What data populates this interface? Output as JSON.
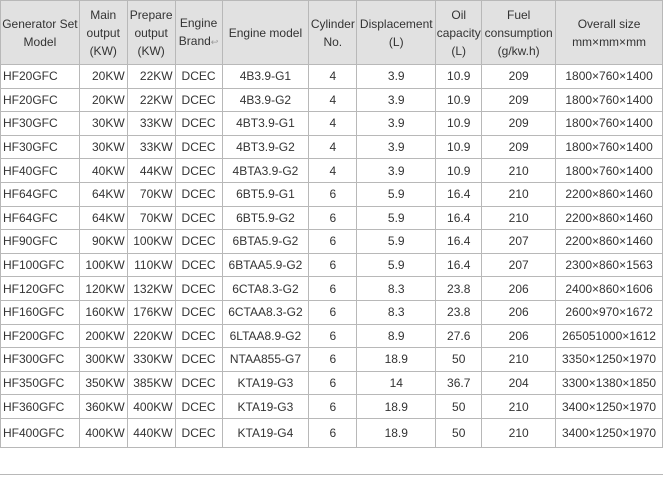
{
  "headers": [
    [
      "Generator Set",
      "Model"
    ],
    [
      "Main",
      "output",
      "(KW)"
    ],
    [
      "Prepare",
      "output",
      "(KW)"
    ],
    [
      "Engine",
      "Brand"
    ],
    [
      "Engine model"
    ],
    [
      "Cylinder",
      "No."
    ],
    [
      "Displacement",
      "(L)"
    ],
    [
      "Oil",
      "capacity",
      "(L)"
    ],
    [
      "Fuel",
      "consumption",
      "(g/kw.h)"
    ],
    [
      "Overall size",
      "mm×mm×mm"
    ]
  ],
  "brand_mark": "↩",
  "rows": [
    [
      "HF20GFC",
      "20KW",
      "22KW",
      "DCEC",
      "4B3.9-G1",
      "4",
      "3.9",
      "10.9",
      "209",
      "1800×760×1400"
    ],
    [
      "HF20GFC",
      "20KW",
      "22KW",
      "DCEC",
      "4B3.9-G2",
      "4",
      "3.9",
      "10.9",
      "209",
      "1800×760×1400"
    ],
    [
      "HF30GFC",
      "30KW",
      "33KW",
      "DCEC",
      "4BT3.9-G1",
      "4",
      "3.9",
      "10.9",
      "209",
      "1800×760×1400"
    ],
    [
      "HF30GFC",
      "30KW",
      "33KW",
      "DCEC",
      "4BT3.9-G2",
      "4",
      "3.9",
      "10.9",
      "209",
      "1800×760×1400"
    ],
    [
      "HF40GFC",
      "40KW",
      "44KW",
      "DCEC",
      "4BTA3.9-G2",
      "4",
      "3.9",
      "10.9",
      "210",
      "1800×760×1400"
    ],
    [
      "HF64GFC",
      "64KW",
      "70KW",
      "DCEC",
      "6BT5.9-G1",
      "6",
      "5.9",
      "16.4",
      "210",
      "2200×860×1460"
    ],
    [
      "HF64GFC",
      "64KW",
      "70KW",
      "DCEC",
      "6BT5.9-G2",
      "6",
      "5.9",
      "16.4",
      "210",
      "2200×860×1460"
    ],
    [
      "HF90GFC",
      "90KW",
      "100KW",
      "DCEC",
      "6BTA5.9-G2",
      "6",
      "5.9",
      "16.4",
      "207",
      "2200×860×1460"
    ],
    [
      "HF100GFC",
      "100KW",
      "110KW",
      "DCEC",
      "6BTAA5.9-G2",
      "6",
      "5.9",
      "16.4",
      "207",
      "2300×860×1563"
    ],
    [
      "HF120GFC",
      "120KW",
      "132KW",
      "DCEC",
      "6CTA8.3-G2",
      "6",
      "8.3",
      "23.8",
      "206",
      "2400×860×1606"
    ],
    [
      "HF160GFC",
      "160KW",
      "176KW",
      "DCEC",
      "6CTAA8.3-G2",
      "6",
      "8.3",
      "23.8",
      "206",
      "2600×970×1672"
    ],
    [
      "HF200GFC",
      "200KW",
      "220KW",
      "DCEC",
      "6LTAA8.9-G2",
      "6",
      "8.9",
      "27.6",
      "206",
      "265051000×1612"
    ],
    [
      "HF300GFC",
      "300KW",
      "330KW",
      "DCEC",
      "NTAA855-G7",
      "6",
      "18.9",
      "50",
      "210",
      "3350×1250×1970"
    ],
    [
      "HF350GFC",
      "350KW",
      "385KW",
      "DCEC",
      "KTA19-G3",
      "6",
      "14",
      "36.7",
      "204",
      "3300×1380×1850"
    ],
    [
      "HF360GFC",
      "360KW",
      "400KW",
      "DCEC",
      "KTA19-G3",
      "6",
      "18.9",
      "50",
      "210",
      "3400×1250×1970"
    ],
    [
      "HF400GFC",
      "400KW",
      "440KW",
      "DCEC",
      "KTA19-G4",
      "6",
      "18.9",
      "50",
      "210",
      "3400×1250×1970"
    ]
  ]
}
